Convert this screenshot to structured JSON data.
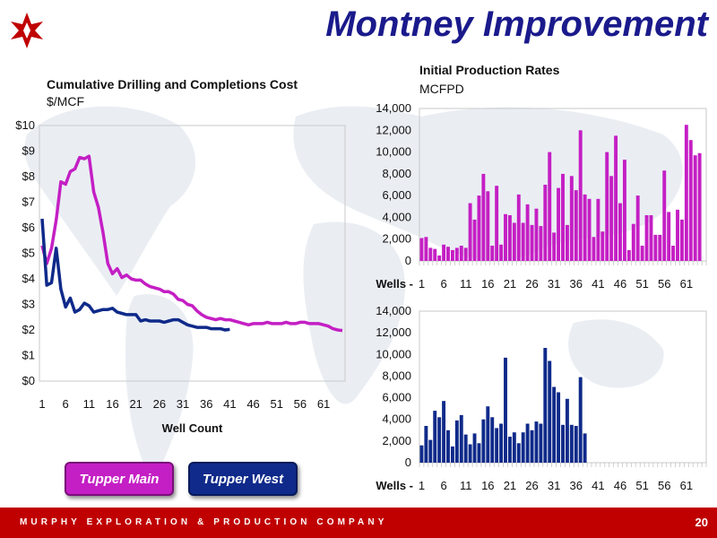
{
  "slide": {
    "title": "Montney Improvement",
    "footer": "MURPHY EXPLORATION & PRODUCTION COMPANY",
    "page_number": "20",
    "colors": {
      "title": "#1a1a8c",
      "footer": "#c00000",
      "tupper_main": "#c41fc4",
      "tupper_west": "#0f2a8a"
    }
  },
  "legend": {
    "main_label": "Tupper Main",
    "west_label": "Tupper West"
  },
  "chart_data": [
    {
      "type": "line",
      "title": "Cumulative Drilling and Completions Cost",
      "subtitle": "$/MCF",
      "xlabel": "Well Count",
      "ylabel": "",
      "ylim": [
        0,
        10
      ],
      "xlim": [
        1,
        65
      ],
      "y_ticks": [
        "$0",
        "$1",
        "$2",
        "$3",
        "$4",
        "$5",
        "$6",
        "$7",
        "$8",
        "$9",
        "$10"
      ],
      "x_ticks": [
        1,
        6,
        11,
        16,
        21,
        26,
        31,
        36,
        41,
        46,
        51,
        56,
        61
      ],
      "grid": false,
      "series": [
        {
          "name": "Tupper Main",
          "color": "#c41fc4",
          "x": [
            1,
            2,
            3,
            4,
            5,
            6,
            7,
            8,
            9,
            10,
            11,
            12,
            13,
            14,
            15,
            16,
            17,
            18,
            19,
            20,
            21,
            22,
            23,
            24,
            25,
            26,
            27,
            28,
            29,
            30,
            31,
            32,
            33,
            34,
            35,
            36,
            37,
            38,
            39,
            40,
            41,
            42,
            43,
            44,
            45,
            46,
            47,
            48,
            49,
            50,
            51,
            52,
            53,
            54,
            55,
            56,
            57,
            58,
            59,
            60,
            61,
            62,
            63,
            64,
            65
          ],
          "y": [
            5.3,
            4.6,
            5.2,
            6.3,
            7.8,
            7.7,
            8.2,
            8.3,
            8.75,
            8.7,
            8.8,
            7.4,
            6.8,
            5.8,
            4.6,
            4.2,
            4.4,
            4.05,
            4.15,
            4.0,
            3.95,
            3.95,
            3.8,
            3.7,
            3.65,
            3.6,
            3.5,
            3.5,
            3.4,
            3.2,
            3.15,
            3.0,
            2.95,
            2.75,
            2.6,
            2.5,
            2.45,
            2.4,
            2.45,
            2.4,
            2.4,
            2.35,
            2.3,
            2.25,
            2.2,
            2.25,
            2.25,
            2.25,
            2.3,
            2.25,
            2.25,
            2.25,
            2.3,
            2.25,
            2.25,
            2.3,
            2.3,
            2.25,
            2.25,
            2.25,
            2.2,
            2.15,
            2.05,
            2.0,
            1.98
          ]
        },
        {
          "name": "Tupper West",
          "color": "#0f2a8a",
          "x": [
            1,
            2,
            3,
            4,
            5,
            6,
            7,
            8,
            9,
            10,
            11,
            12,
            13,
            14,
            15,
            16,
            17,
            18,
            19,
            20,
            21,
            22,
            23,
            24,
            25,
            26,
            27,
            28,
            29,
            30,
            31,
            32,
            33,
            34,
            35,
            36,
            37,
            38,
            39,
            40,
            41
          ],
          "y": [
            6.35,
            3.75,
            3.85,
            5.2,
            3.6,
            2.9,
            3.25,
            2.7,
            2.8,
            3.05,
            2.95,
            2.7,
            2.75,
            2.8,
            2.8,
            2.85,
            2.7,
            2.65,
            2.6,
            2.6,
            2.6,
            2.35,
            2.4,
            2.35,
            2.35,
            2.35,
            2.3,
            2.35,
            2.4,
            2.4,
            2.3,
            2.2,
            2.15,
            2.1,
            2.1,
            2.1,
            2.05,
            2.05,
            2.05,
            2.0,
            2.02
          ]
        }
      ]
    },
    {
      "type": "bar",
      "title": "Initial Production Rates",
      "subtitle": "MCFPD",
      "ylim": [
        0,
        14000
      ],
      "y_ticks": [
        "0",
        "2,000",
        "4,000",
        "6,000",
        "8,000",
        "10,000",
        "12,000",
        "14,000"
      ],
      "x_prefix": "Wells -",
      "x_ticks": [
        1,
        6,
        11,
        16,
        21,
        26,
        31,
        36,
        41,
        46,
        51,
        56,
        61
      ],
      "n_slots": 65,
      "series": [
        {
          "name": "Tupper Main",
          "color": "#c41fc4",
          "values": [
            2100,
            2200,
            1200,
            1100,
            500,
            1500,
            1300,
            1000,
            1200,
            1400,
            1200,
            5300,
            3800,
            6000,
            8000,
            6400,
            1400,
            6900,
            1500,
            4300,
            4200,
            3500,
            6100,
            3500,
            5200,
            3300,
            4800,
            3200,
            7000,
            10000,
            2600,
            6700,
            8000,
            3300,
            7800,
            6500,
            12000,
            6100,
            5700,
            2200,
            5700,
            2700,
            10000,
            7800,
            11500,
            5300,
            9300,
            1000,
            3400,
            6000,
            1400,
            4200,
            4200,
            2400,
            2400,
            8300,
            4500,
            1400,
            4700,
            3800,
            12500,
            11100,
            9700,
            9900
          ]
        }
      ]
    },
    {
      "type": "bar",
      "ylim": [
        0,
        14000
      ],
      "y_ticks": [
        "0",
        "2,000",
        "4,000",
        "6,000",
        "8,000",
        "10,000",
        "12,000",
        "14,000"
      ],
      "x_prefix": "Wells -",
      "x_ticks": [
        1,
        6,
        11,
        16,
        21,
        26,
        31,
        36,
        41,
        46,
        51,
        56,
        61
      ],
      "n_slots": 65,
      "series": [
        {
          "name": "Tupper West",
          "color": "#0f2a8a",
          "values": [
            1600,
            3400,
            2100,
            4800,
            4200,
            5700,
            3000,
            1500,
            3900,
            4400,
            2600,
            1700,
            2700,
            1800,
            4000,
            5200,
            4200,
            3200,
            3600,
            9700,
            2400,
            2800,
            1800,
            2800,
            3600,
            3000,
            3800,
            3600,
            10600,
            9400,
            7000,
            6500,
            3500,
            5900,
            3500,
            3400,
            7900,
            2700
          ]
        }
      ]
    }
  ]
}
